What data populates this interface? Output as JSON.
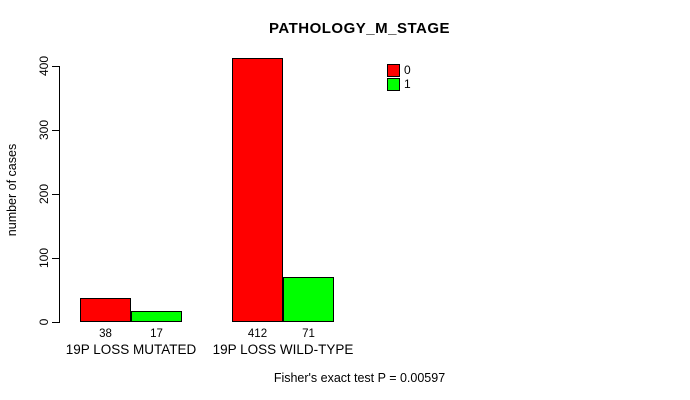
{
  "chart_data": {
    "type": "bar",
    "title": "PATHOLOGY_M_STAGE",
    "xlabel": "",
    "ylabel": "number of cases",
    "ylim": [
      0,
      400
    ],
    "yticks": [
      0,
      100,
      200,
      300,
      400
    ],
    "grid": false,
    "legend_position": "top-right-inside",
    "categories": [
      "19P LOSS MUTATED",
      "19P LOSS WILD-TYPE"
    ],
    "series": [
      {
        "name": "0",
        "color": "#ff0000",
        "values": [
          38,
          412
        ]
      },
      {
        "name": "1",
        "color": "#00ff00",
        "values": [
          17,
          71
        ]
      }
    ],
    "bar_value_labels": [
      [
        "38",
        "412"
      ],
      [
        "17",
        "71"
      ]
    ],
    "footnote": "Fisher's exact test P = 0.00597"
  },
  "colors": {
    "background": "#ffffff",
    "bar_border": "#000000",
    "axis": "#000000",
    "text": "#000000",
    "series_0": "#ff0000",
    "series_1": "#00ff00"
  }
}
